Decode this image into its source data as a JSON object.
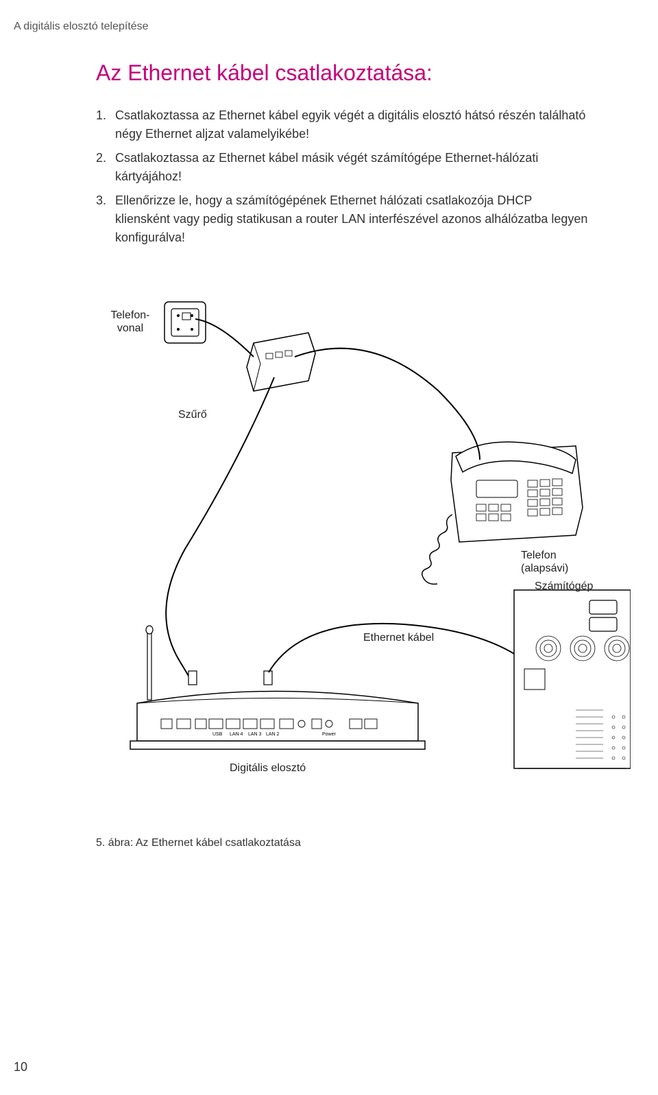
{
  "header": "A digitális elosztó telepítése",
  "title": "Az Ethernet kábel csatlakoztatása:",
  "steps": [
    {
      "num": "1.",
      "text": "Csatlakoztassa az Ethernet kábel egyik végét a digitális elosztó hátsó részén található négy Ethernet aljzat valamelyikébe!"
    },
    {
      "num": "2.",
      "text": "Csatlakoztassa az Ethernet kábel másik végét számítógépe Ethernet-hálózati kártyájához!"
    },
    {
      "num": "3.",
      "text": "Ellenőrizze le, hogy a számítógépének Ethernet hálózati csatlakozója DHCP kliensként vagy pedig statikusan a router LAN interfészével azonos alhálózatba legyen konfigurálva!"
    }
  ],
  "labels": {
    "phone_line": "Telefon-\nvonal",
    "filter": "Szűrő",
    "phone": "Telefon\n(alapsávi)",
    "computer": "Számítógép",
    "ethernet_cable": "Ethernet kábel",
    "router": "Digitális elosztó"
  },
  "caption": "5. ábra: Az Ethernet kábel csatlakoztatása",
  "page": "10",
  "colors": {
    "accent": "#c4007a",
    "text": "#333333",
    "line": "#000000"
  }
}
